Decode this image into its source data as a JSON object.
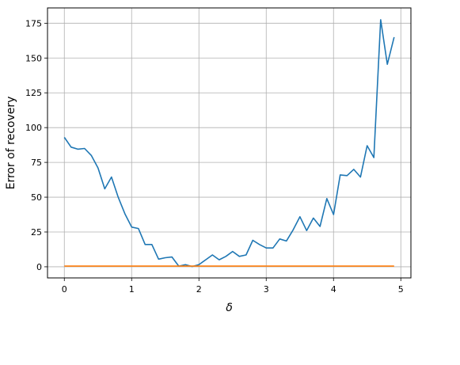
{
  "chart_data": {
    "type": "line",
    "xlabel": "δ",
    "ylabel": "Error of recovery",
    "xlim": [
      -0.25,
      5.15
    ],
    "ylim": [
      -8,
      186
    ],
    "xticks": [
      0,
      1,
      2,
      3,
      4,
      5
    ],
    "yticks": [
      0,
      25,
      50,
      75,
      100,
      125,
      150,
      175
    ],
    "grid": true,
    "legend": "none",
    "series": [
      {
        "color": "#1f77b4",
        "x": [
          0.0,
          0.1,
          0.2,
          0.3,
          0.4,
          0.5,
          0.6,
          0.7,
          0.8,
          0.9,
          1.0,
          1.1,
          1.2,
          1.3,
          1.4,
          1.5,
          1.6,
          1.7,
          1.8,
          1.9,
          2.0,
          2.1,
          2.2,
          2.3,
          2.4,
          2.5,
          2.6,
          2.7,
          2.8,
          2.9,
          3.0,
          3.1,
          3.2,
          3.3,
          3.4,
          3.5,
          3.6,
          3.7,
          3.8,
          3.9,
          4.0,
          4.1,
          4.2,
          4.3,
          4.4,
          4.5,
          4.6,
          4.7,
          4.8,
          4.9
        ],
        "y": [
          93,
          86,
          84.5,
          85,
          80,
          71,
          56,
          64.5,
          50,
          38,
          28.5,
          27.5,
          16,
          16,
          5.5,
          6.5,
          7,
          0.5,
          1.5,
          0.2,
          1.5,
          5,
          8.5,
          5,
          7.5,
          11,
          7.5,
          8.5,
          19,
          16,
          13.5,
          13.5,
          20,
          18.5,
          26.5,
          36,
          26,
          35,
          29,
          49,
          37.5,
          66,
          65.5,
          70,
          64.5,
          87,
          78.5,
          177.5,
          145.5,
          165
        ]
      },
      {
        "color": "#ff7f0e",
        "x": [
          0.0,
          4.9
        ],
        "y": [
          0.5,
          0.5
        ]
      }
    ]
  }
}
